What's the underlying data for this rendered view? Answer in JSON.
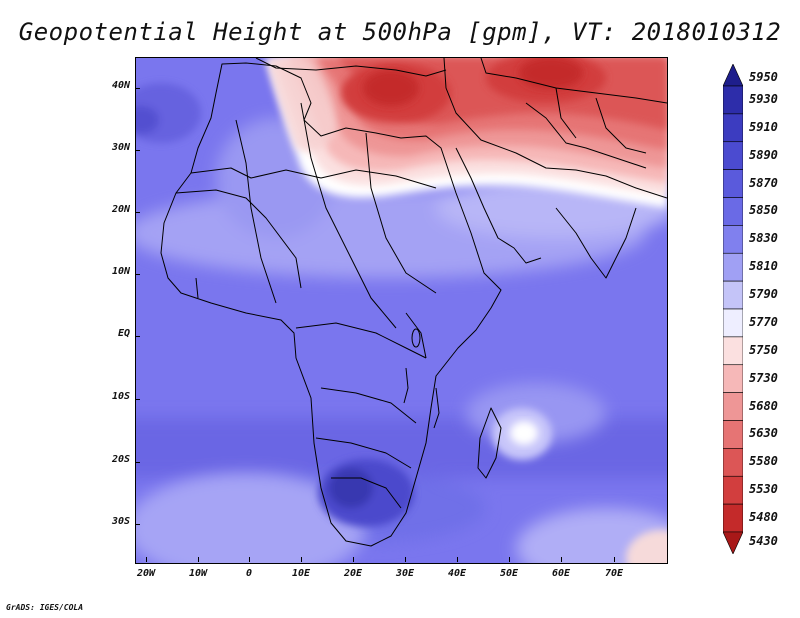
{
  "title": "Geopotential Height at 500hPa [gpm], VT: 2018010312",
  "credit": "GrADS: IGES/COLA",
  "map": {
    "variable": "Geopotential Height at 500hPa",
    "units": "gpm",
    "valid_time": "2018010312",
    "lon_range": [
      -22,
      80
    ],
    "lat_range": [
      -37,
      45
    ],
    "lat_labels": [
      "40N",
      "30N",
      "20N",
      "10N",
      "EQ",
      "10S",
      "20S",
      "30S"
    ],
    "lon_labels": [
      "20W",
      "10W",
      "0",
      "10E",
      "20E",
      "30E",
      "40E",
      "50E",
      "60E",
      "70E"
    ]
  },
  "colorbar": {
    "labels": [
      "5950",
      "5930",
      "5910",
      "5890",
      "5870",
      "5850",
      "5830",
      "5810",
      "5790",
      "5770",
      "5750",
      "5730",
      "5680",
      "5630",
      "5580",
      "5530",
      "5480",
      "5430"
    ],
    "colors": [
      "#1e1e8c",
      "#2d2daa",
      "#3c3cc0",
      "#4b4bd0",
      "#5a5adc",
      "#6a6ae6",
      "#8080ee",
      "#a0a0f4",
      "#c4c4f8",
      "#eeeeff",
      "#fbe0e0",
      "#f6b8b8",
      "#ee9696",
      "#e67474",
      "#dc5656",
      "#d23e3e",
      "#c42a2a",
      "#a81818"
    ]
  }
}
